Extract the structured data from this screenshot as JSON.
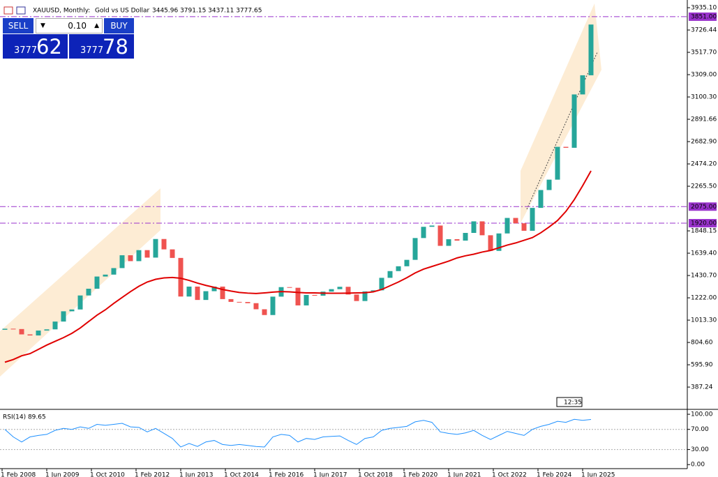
{
  "header": {
    "symbol": "XAUUSD, Monthly:",
    "description": "Gold vs US Dollar",
    "ohlc": "3445.96 3791.15 3437.11 3777.65"
  },
  "trade_panel": {
    "sell": "SELL",
    "buy": "BUY",
    "volume": "0.10",
    "sell_price": {
      "big": "3777",
      "pips": "62"
    },
    "buy_price": {
      "big": "3777",
      "pips": "78"
    }
  },
  "time_label": "12:35",
  "chart_data": [
    {
      "type": "candlestick",
      "xticks": [
        "1 Feb 2008",
        "1 Jun 2009",
        "1 Oct 2010",
        "1 Feb 2012",
        "1 Jun 2013",
        "1 Oct 2014",
        "1 Feb 2016",
        "1 Jun 2017",
        "1 Oct 2018",
        "1 Feb 2020",
        "1 Jun 2021",
        "1 Oct 2022",
        "1 Feb 2024",
        "1 Jun 2025"
      ],
      "ylim": [
        192,
        3981
      ],
      "yticks": [
        {
          "value": 3935.1,
          "label": "3935.10"
        },
        {
          "value": 3726.44,
          "label": "3726.44"
        },
        {
          "value": 3517.7,
          "label": "3517.70"
        },
        {
          "value": 3309,
          "label": "3309.00"
        },
        {
          "value": 3100.3,
          "label": "3100.30"
        },
        {
          "value": 2891.66,
          "label": "2891.66"
        },
        {
          "value": 2682.9,
          "label": "2682.90"
        },
        {
          "value": 2474.2,
          "label": "2474.20"
        },
        {
          "value": 2265.5,
          "label": "2265.50"
        },
        {
          "value": 1848.15,
          "label": "1848.15"
        },
        {
          "value": 1639.4,
          "label": "1639.40"
        },
        {
          "value": 1430.7,
          "label": "1430.70"
        },
        {
          "value": 1222,
          "label": "1222.00"
        },
        {
          "value": 1013.3,
          "label": "1013.30"
        },
        {
          "value": 804.6,
          "label": "804.60"
        },
        {
          "value": 595.9,
          "label": "595.90"
        },
        {
          "value": 387.24,
          "label": "387.24"
        }
      ],
      "levels": [
        {
          "value": 3851,
          "label": "3851.00"
        },
        {
          "value": 2075,
          "label": "2075.00"
        },
        {
          "value": 1920,
          "label": "1920.00"
        }
      ],
      "level_color": "#9932cc",
      "series": [
        {
          "open": 923,
          "up_color": "#26a69a",
          "down_color": "#ef5350",
          "values": [
            933,
            930,
            880,
            870,
            916,
            927,
            1000,
            1096,
            1113,
            1244,
            1307,
            1421,
            1439,
            1500,
            1620,
            1565,
            1668,
            1598,
            1772,
            1675,
            1595,
            1234,
            1327,
            1202,
            1284,
            1327,
            1210,
            1184,
            1183,
            1172,
            1115,
            1061,
            1233,
            1322,
            1316,
            1151,
            1249,
            1242,
            1280,
            1303,
            1325,
            1253,
            1192,
            1282,
            1292,
            1409,
            1472,
            1517,
            1577,
            1781,
            1886,
            1898,
            1708,
            1770,
            1757,
            1829,
            1937,
            1807,
            1661,
            1824,
            1969,
            1919,
            1849,
            2063,
            2230,
            2327,
            2634,
            2625,
            3124,
            3303,
            3777.65
          ]
        },
        {
          "color": "#e00000",
          "values": [
            620,
            645,
            680,
            700,
            740,
            780,
            815,
            850,
            890,
            940,
            1000,
            1060,
            1110,
            1170,
            1225,
            1280,
            1330,
            1370,
            1395,
            1408,
            1412,
            1405,
            1385,
            1360,
            1338,
            1320,
            1300,
            1285,
            1272,
            1266,
            1262,
            1268,
            1275,
            1280,
            1278,
            1272,
            1268,
            1268,
            1266,
            1265,
            1265,
            1266,
            1268,
            1270,
            1278,
            1300,
            1335,
            1370,
            1410,
            1455,
            1490,
            1515,
            1540,
            1565,
            1595,
            1615,
            1630,
            1650,
            1665,
            1690,
            1715,
            1735,
            1760,
            1785,
            1830,
            1885,
            1945,
            2030,
            2140,
            2270,
            2409
          ]
        }
      ]
    },
    {
      "type": "line",
      "label": "RSI(14) 89.65",
      "color": "#1e90ff",
      "ylim": [
        -8,
        107
      ],
      "yticks": [
        {
          "value": 100,
          "label": "100.00"
        },
        {
          "value": 70,
          "label": "70.00"
        },
        {
          "value": 30,
          "label": "30.00"
        },
        {
          "value": 0,
          "label": "0.00"
        }
      ],
      "values": [
        70,
        55,
        45,
        55,
        58,
        60,
        68,
        72,
        70,
        75,
        72,
        80,
        78,
        80,
        82,
        75,
        74,
        65,
        72,
        62,
        52,
        35,
        42,
        36,
        45,
        48,
        40,
        38,
        40,
        38,
        36,
        35,
        55,
        60,
        58,
        45,
        52,
        50,
        55,
        56,
        57,
        48,
        40,
        52,
        55,
        68,
        72,
        74,
        76,
        85,
        88,
        84,
        65,
        62,
        60,
        63,
        68,
        58,
        50,
        58,
        66,
        62,
        58,
        70,
        76,
        80,
        86,
        84,
        90,
        88,
        89.65
      ]
    }
  ]
}
